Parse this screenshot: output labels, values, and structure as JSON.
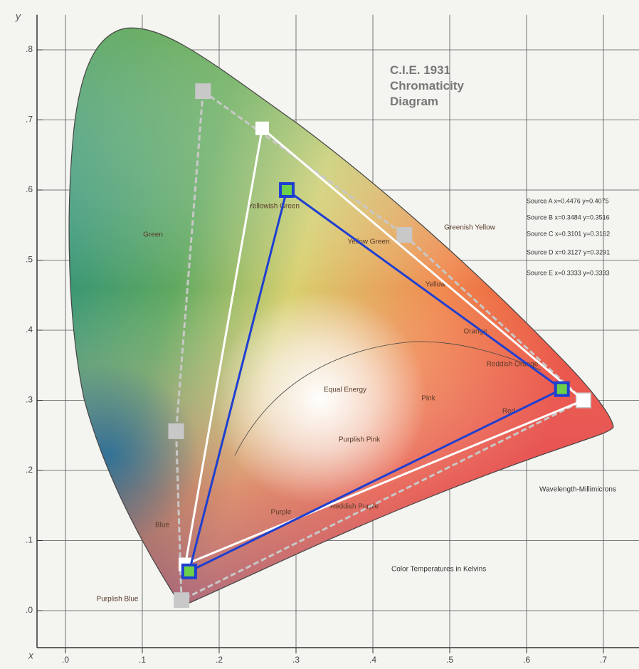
{
  "chart_data": {
    "type": "polygon",
    "title": "C.I.E. 1931 Chromaticity Diagram",
    "x_label": "x",
    "y_label": "y",
    "xlim": [
      0,
      0.75
    ],
    "ylim": [
      0,
      0.85
    ],
    "xticks": [
      {
        "value": 0,
        "label": ".0"
      },
      {
        "value": 0.1,
        "label": ".1"
      },
      {
        "value": 0.2,
        "label": ".2"
      },
      {
        "value": 0.3,
        "label": ".3"
      },
      {
        "value": 0.4,
        "label": ".4"
      },
      {
        "value": 0.5,
        "label": ".5"
      },
      {
        "value": 0.6,
        "label": ".6"
      },
      {
        "value": 0.7,
        "label": ".7"
      }
    ],
    "yticks": [
      {
        "value": 0,
        "label": ".0"
      },
      {
        "value": 0.1,
        "label": ".1"
      },
      {
        "value": 0.2,
        "label": ".2"
      },
      {
        "value": 0.3,
        "label": ".3"
      },
      {
        "value": 0.4,
        "label": ".4"
      },
      {
        "value": 0.5,
        "label": ".5"
      },
      {
        "value": 0.6,
        "label": ".6"
      },
      {
        "value": 0.7,
        "label": ".7"
      },
      {
        "value": 0.8,
        "label": ".8"
      }
    ],
    "grid": true,
    "series": [
      {
        "color": "#c8c8c8",
        "dashed": true,
        "x": [
          0.179,
          0.441,
          0.674,
          0.151,
          0.144
        ],
        "values": [
          0.741,
          0.536,
          0.3,
          0.015,
          0.256
        ]
      },
      {
        "color": "#ffffff",
        "dashed": false,
        "x": [
          0.256,
          0.674,
          0.156
        ],
        "values": [
          0.688,
          0.3,
          0.066
        ]
      },
      {
        "color": "#1f3fd0",
        "dashed": false,
        "x": [
          0.288,
          0.646,
          0.161
        ],
        "values": [
          0.6,
          0.316,
          0.056
        ]
      }
    ],
    "regions": [
      "Green",
      "Yellowish Green",
      "Yellow Green",
      "Greenish Yellow",
      "Yellow",
      "Orange",
      "Reddish Orange",
      "Red",
      "Pink",
      "Purplish Pink",
      "Purple",
      "Reddish Purple",
      "Purplish Blue",
      "Blue",
      "Equal Energy"
    ],
    "sources": [
      "Source A x=0.4476 y=0.4075",
      "Source B x=0.3484 y=0.3516",
      "Source C x=0.3101 y=0.3162",
      "Source D x=0.3127 y=0.3291",
      "Source E x=0.3333 y=0.3333"
    ],
    "notes": [
      "Wavelength-Millimicrons",
      "Color Temperatures in Kelvins"
    ]
  }
}
